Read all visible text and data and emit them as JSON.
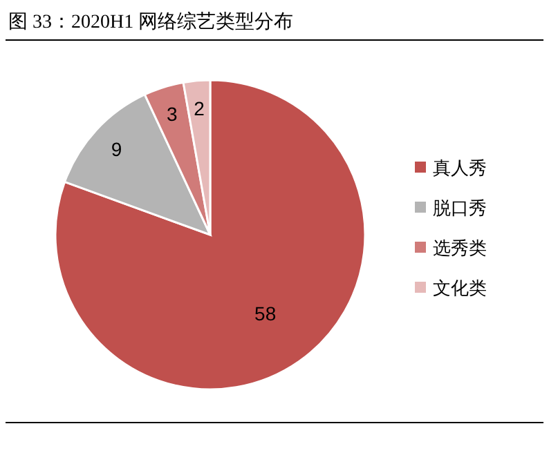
{
  "chart_data": {
    "type": "pie",
    "title": "图 33：2020H1 网络综艺类型分布",
    "categories": [
      "真人秀",
      "脱口秀",
      "选秀类",
      "文化类"
    ],
    "values": [
      58,
      9,
      3,
      2
    ],
    "colors": [
      "#c0504d",
      "#b4b4b4",
      "#d07b79",
      "#e6b9b8"
    ],
    "data_labels": true,
    "legend": "right"
  }
}
